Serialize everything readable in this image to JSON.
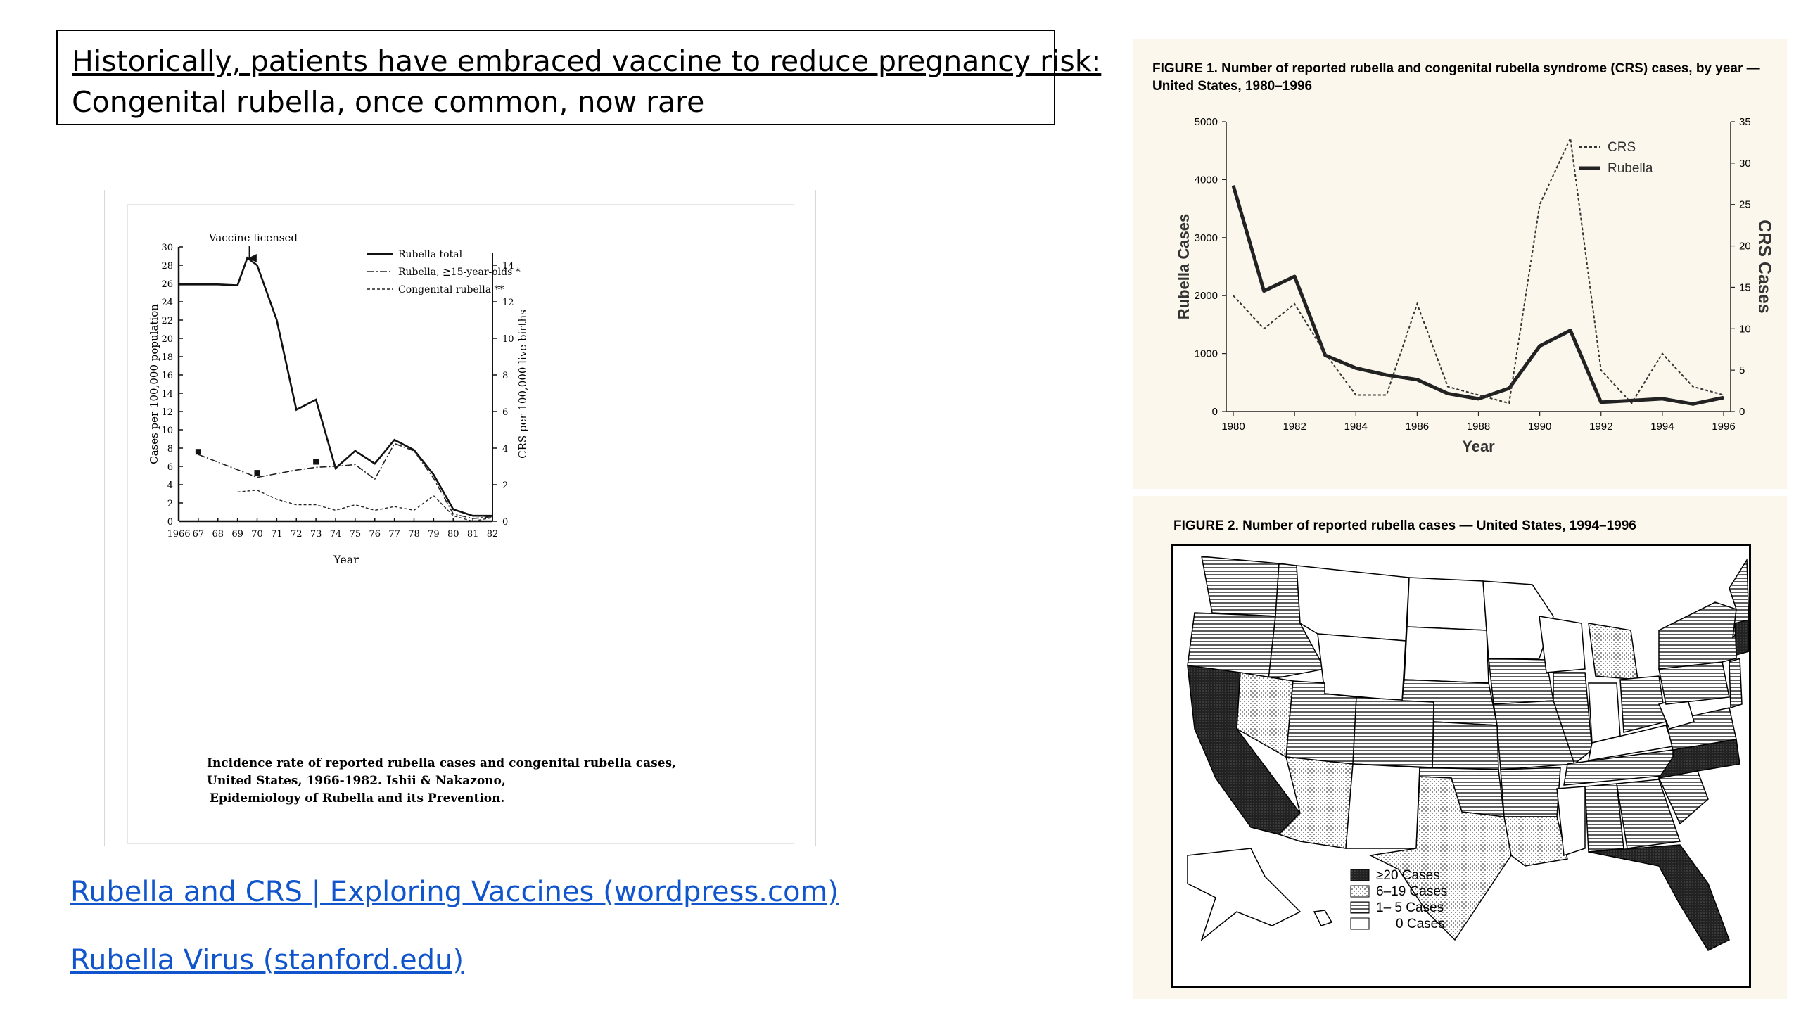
{
  "slide": {
    "title_line1": "Historically, patients have embraced vaccine to reduce pregnancy risk:",
    "title_line2": "Congenital rubella, once common, now rare"
  },
  "links": [
    {
      "text": "Rubella and CRS | Exploring Vaccines (wordpress.com)"
    },
    {
      "text": "Rubella Virus (stanford.edu)"
    }
  ],
  "chart_data": [
    {
      "type": "line",
      "annotation": "Vaccine licensed",
      "ylabel": "Cases per 100,000 population",
      "y2label": "CRS per 100,000 live births",
      "xlabel": "Year",
      "x_ticks": [
        "1966",
        "67",
        "68",
        "69",
        "70",
        "71",
        "72",
        "73",
        "74",
        "75",
        "76",
        "77",
        "78",
        "79",
        "80",
        "81",
        "82"
      ],
      "y_ticks": [
        "0",
        "2",
        "4",
        "6",
        "8",
        "10",
        "12",
        "14",
        "16",
        "18",
        "20",
        "22",
        "24",
        "26",
        "28",
        "30"
      ],
      "y2_ticks": [
        "0",
        "2",
        "4",
        "6",
        "8",
        "10",
        "12",
        "14"
      ],
      "ylim": [
        0,
        30
      ],
      "y2lim": [
        0,
        15
      ],
      "legend": [
        "Rubella total",
        "Rubella, ≧15-year-olds *",
        "Congenital rubella **"
      ],
      "caption": [
        "Incidence rate of reported rubella cases and congenital rubella cases,",
        "United States, 1966-1982. Ishii & Nakazono,",
        "Epidemiology of Rubella and its Prevention."
      ],
      "series": [
        {
          "name": "Rubella total",
          "x": [
            1966,
            1967,
            1968,
            1969,
            1969.5,
            1970,
            1971,
            1972,
            1973,
            1974,
            1975,
            1976,
            1977,
            1978,
            1979,
            1980,
            1981,
            1982
          ],
          "values": [
            25.9,
            25.9,
            25.9,
            25.8,
            28.8,
            28.0,
            22.0,
            12.2,
            13.3,
            5.8,
            7.7,
            6.3,
            8.9,
            7.8,
            5.1,
            1.3,
            0.6,
            0.6
          ]
        },
        {
          "name": "Rubella, ≧15-year-olds *",
          "x": [
            1967,
            1970,
            1971,
            1972,
            1973,
            1974,
            1975,
            1976,
            1977,
            1978,
            1979,
            1980,
            1981,
            1982
          ],
          "values": [
            7.3,
            4.8,
            5.2,
            5.6,
            5.9,
            6.0,
            6.2,
            4.6,
            8.5,
            7.7,
            4.7,
            0.8,
            0.3,
            0.5
          ]
        },
        {
          "name": "Congenital rubella **",
          "axis": "right",
          "x": [
            1969,
            1970,
            1971,
            1972,
            1973,
            1974,
            1975,
            1976,
            1977,
            1978,
            1979,
            1980,
            1981,
            1982
          ],
          "values": [
            1.6,
            1.7,
            1.2,
            0.9,
            0.9,
            0.6,
            0.9,
            0.6,
            0.8,
            0.6,
            1.4,
            0.3,
            0.0,
            0.2
          ]
        }
      ],
      "markers_x": [
        1967,
        1970,
        1973
      ],
      "markers_y": [
        7.6,
        5.3,
        6.5
      ]
    },
    {
      "type": "line",
      "title": "FIGURE 1. Number of reported rubella and congenital rubella syndrome (CRS) cases, by year — United States, 1980–1996",
      "xlabel": "Year",
      "ylabel": "Rubella Cases",
      "y2label": "CRS Cases",
      "x_ticks": [
        "1980",
        "1982",
        "1984",
        "1986",
        "1988",
        "1990",
        "1992",
        "1994",
        "1996"
      ],
      "y_ticks": [
        "0",
        "1000",
        "2000",
        "3000",
        "4000",
        "5000"
      ],
      "y2_ticks": [
        "0",
        "5",
        "10",
        "15",
        "20",
        "25",
        "30",
        "35"
      ],
      "ylim": [
        0,
        5000
      ],
      "y2lim": [
        0,
        35
      ],
      "legend": [
        "CRS",
        "Rubella"
      ],
      "legend_position": "top-right",
      "series": [
        {
          "name": "Rubella",
          "x": [
            1980,
            1981,
            1982,
            1983,
            1984,
            1985,
            1986,
            1987,
            1988,
            1989,
            1990,
            1991,
            1992,
            1993,
            1994,
            1995,
            1996
          ],
          "values": [
            3900,
            2080,
            2330,
            970,
            750,
            630,
            550,
            310,
            220,
            400,
            1130,
            1400,
            160,
            190,
            220,
            130,
            240
          ]
        },
        {
          "name": "CRS",
          "axis": "right",
          "x": [
            1980,
            1981,
            1982,
            1983,
            1984,
            1985,
            1986,
            1987,
            1988,
            1989,
            1990,
            1991,
            1992,
            1993,
            1994,
            1995,
            1996
          ],
          "values": [
            14,
            10,
            13,
            7,
            2,
            2,
            13,
            3,
            2,
            1,
            25,
            33,
            5,
            1,
            7,
            3,
            2
          ]
        }
      ]
    }
  ],
  "map": {
    "title": "FIGURE 2. Number of reported rubella cases — United States, 1994–1996",
    "legend": [
      {
        "label": "≥20 Cases",
        "pattern": "dark"
      },
      {
        "label": "6–19 Cases",
        "pattern": "dots"
      },
      {
        "label": "1– 5 Cases",
        "pattern": "lines"
      },
      {
        "label": "0 Cases",
        "pattern": "empty"
      }
    ]
  }
}
